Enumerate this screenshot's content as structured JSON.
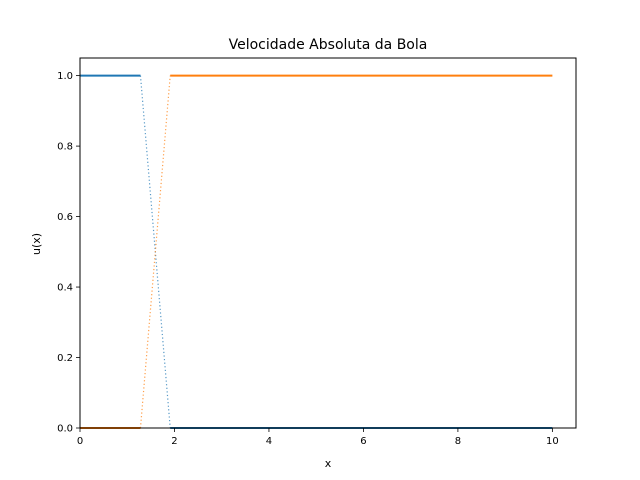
{
  "chart_data": {
    "type": "line",
    "title": "Velocidade Absoluta da Bola",
    "xlabel": "x",
    "ylabel": "u(x)",
    "xlim": [
      0,
      10.5
    ],
    "ylim": [
      0,
      1.05
    ],
    "xticks": [
      0,
      2,
      4,
      6,
      8,
      10
    ],
    "xtick_labels": [
      "0",
      "2",
      "4",
      "6",
      "8",
      "10"
    ],
    "yticks": [
      0.0,
      0.2,
      0.4,
      0.6,
      0.8,
      1.0
    ],
    "ytick_labels": [
      "0.0",
      "0.2",
      "0.4",
      "0.6",
      "0.8",
      "1.0"
    ],
    "grid": false,
    "legend": "none",
    "series": [
      {
        "color": "#1f77b4",
        "segments": [
          {
            "style": "solid",
            "points": [
              [
                0,
                1.0
              ],
              [
                1.28,
                1.0
              ]
            ]
          },
          {
            "style": "dotted",
            "points": [
              [
                1.28,
                1.0
              ],
              [
                1.91,
                0.0
              ]
            ]
          },
          {
            "style": "solid",
            "points": [
              [
                1.91,
                0.0
              ],
              [
                10,
                0.0
              ]
            ]
          }
        ]
      },
      {
        "color": "#ff7f0e",
        "segments": [
          {
            "style": "solid",
            "points": [
              [
                0,
                0.0
              ],
              [
                1.28,
                0.0
              ]
            ]
          },
          {
            "style": "dotted",
            "points": [
              [
                1.28,
                0.0
              ],
              [
                1.91,
                1.0
              ]
            ]
          },
          {
            "style": "solid",
            "points": [
              [
                1.91,
                1.0
              ],
              [
                10,
                1.0
              ]
            ]
          }
        ]
      }
    ]
  }
}
